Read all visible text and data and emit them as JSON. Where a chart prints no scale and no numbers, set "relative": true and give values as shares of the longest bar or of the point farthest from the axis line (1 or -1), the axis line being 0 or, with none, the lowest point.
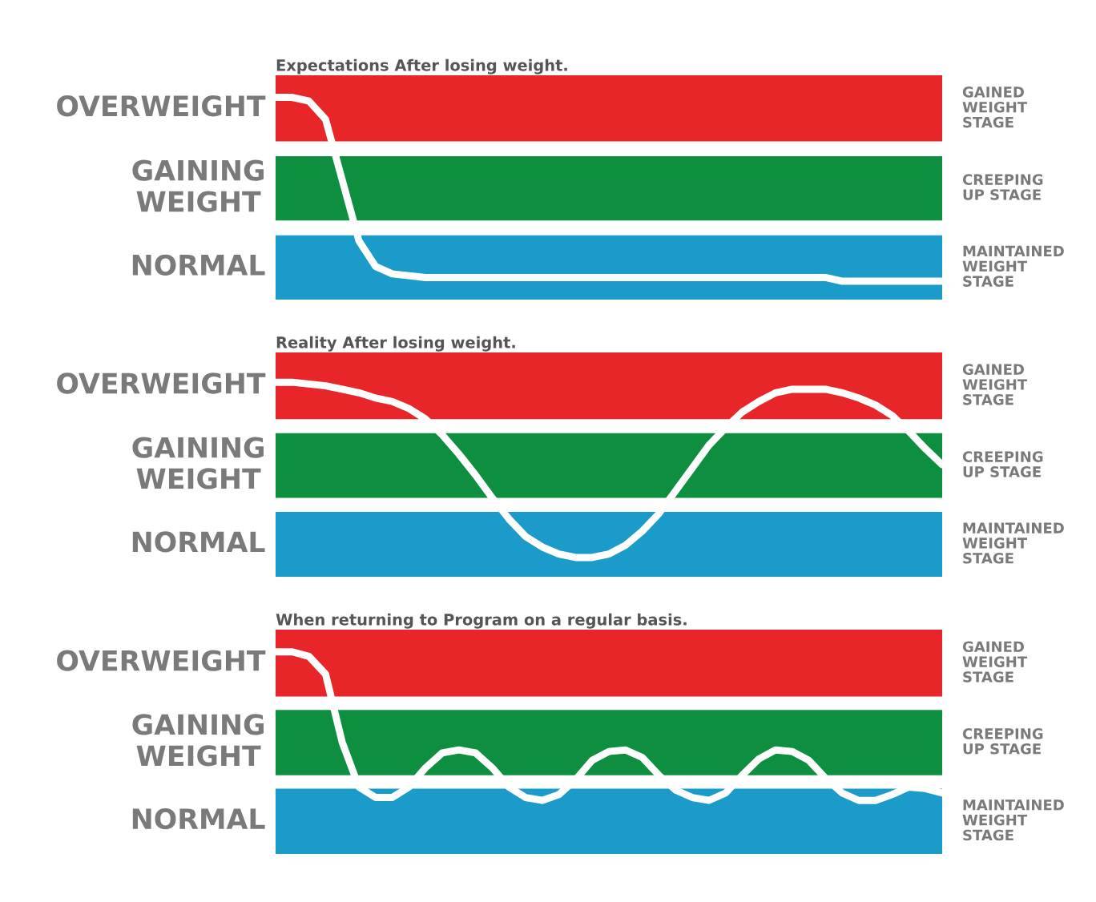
{
  "chart_data": [
    {
      "type": "line",
      "title": "Expectations After losing weight.",
      "relative": true,
      "categories": [
        null,
        null,
        null,
        null,
        null,
        null,
        null,
        null,
        null,
        null,
        null,
        null,
        null,
        null,
        null,
        null,
        null,
        null,
        null,
        null,
        null,
        null,
        null,
        null,
        null,
        null,
        null,
        null,
        null,
        null,
        null,
        null,
        null,
        null,
        null,
        null,
        null,
        null,
        null,
        null,
        null
      ],
      "series": [
        {
          "color": "#ffffff",
          "values": [
            1,
            1,
            0.98,
            0.88,
            0.55,
            0.22,
            0.08,
            0.04,
            0.03,
            0.02,
            0.02,
            0.02,
            0.02,
            0.02,
            0.02,
            0.02,
            0.02,
            0.02,
            0.02,
            0.02,
            0.02,
            0.02,
            0.02,
            0.02,
            0.02,
            0.02,
            0.02,
            0.02,
            0.02,
            0.02,
            0.02,
            0.02,
            0.02,
            0.02,
            0,
            0,
            0,
            0,
            0,
            0,
            0
          ]
        }
      ],
      "annotations": [
        "OVERWEIGHT",
        "GAINING\nWEIGHT",
        "NORMAL"
      ],
      "bands": [
        {
          "axis": "y",
          "from": 0.76,
          "to": 1.12,
          "label": "GAINED\nWEIGHT\nSTAGE",
          "color": "#e8262a"
        },
        {
          "axis": "y",
          "from": 0.33,
          "to": 0.68,
          "label": "CREEPING\nUP STAGE",
          "color": "#0e8f3f"
        },
        {
          "axis": "y",
          "from": -0.1,
          "to": 0.25,
          "label": "MAINTAINED\nWEIGHT\nSTAGE",
          "color": "#1a9bc9"
        }
      ],
      "line_style": "solid"
    },
    {
      "type": "line",
      "title": "Reality After losing weight.",
      "relative": true,
      "categories": [
        null,
        null,
        null,
        null,
        null,
        null,
        null,
        null,
        null,
        null,
        null,
        null,
        null,
        null,
        null,
        null,
        null,
        null,
        null,
        null,
        null,
        null,
        null,
        null,
        null,
        null,
        null,
        null,
        null,
        null,
        null,
        null,
        null,
        null,
        null,
        null,
        null,
        null,
        null,
        null,
        null
      ],
      "series": [
        {
          "color": "#ffffff",
          "values": [
            1,
            1,
            0.99,
            0.98,
            0.96,
            0.94,
            0.91,
            0.89,
            0.85,
            0.79,
            0.7,
            0.59,
            0.47,
            0.34,
            0.22,
            0.12,
            0.06,
            0.02,
            0,
            0,
            0.02,
            0.07,
            0.15,
            0.25,
            0.38,
            0.51,
            0.64,
            0.74,
            0.83,
            0.89,
            0.94,
            0.96,
            0.96,
            0.96,
            0.94,
            0.91,
            0.87,
            0.81,
            0.72,
            0.62,
            0.53
          ]
        }
      ],
      "annotations": [
        "OVERWEIGHT",
        "GAINING\nWEIGHT",
        "NORMAL"
      ],
      "bands": [
        {
          "axis": "y",
          "from": 0.79,
          "to": 1.17,
          "label": "GAINED\nWEIGHT\nSTAGE",
          "color": "#e8262a"
        },
        {
          "axis": "y",
          "from": 0.34,
          "to": 0.71,
          "label": "CREEPING\nUP STAGE",
          "color": "#0e8f3f"
        },
        {
          "axis": "y",
          "from": -0.11,
          "to": 0.26,
          "label": "MAINTAINED\nWEIGHT\nSTAGE",
          "color": "#1a9bc9"
        }
      ],
      "line_style": "solid"
    },
    {
      "type": "line",
      "title": "When returning to Program on a regular basis.",
      "relative": true,
      "categories": [
        null,
        null,
        null,
        null,
        null,
        null,
        null,
        null,
        null,
        null,
        null,
        null,
        null,
        null,
        null,
        null,
        null,
        null,
        null,
        null,
        null,
        null,
        null,
        null,
        null,
        null,
        null,
        null,
        null,
        null,
        null,
        null,
        null,
        null,
        null,
        null,
        null,
        null,
        null,
        null,
        null
      ],
      "series": [
        {
          "color": "#ffffff",
          "values": [
            1,
            1,
            0.97,
            0.85,
            0.39,
            0.09,
            0.02,
            0.02,
            0.09,
            0.22,
            0.32,
            0.34,
            0.32,
            0.22,
            0.09,
            0.02,
            0,
            0.04,
            0.14,
            0.27,
            0.33,
            0.34,
            0.29,
            0.17,
            0.07,
            0.02,
            0,
            0.05,
            0.17,
            0.28,
            0.34,
            0.33,
            0.27,
            0.15,
            0.05,
            0,
            0,
            0.04,
            0.09,
            0.08,
            0.05
          ]
        }
      ],
      "annotations": [
        "OVERWEIGHT",
        "GAINING\nWEIGHT",
        "NORMAL"
      ],
      "bands": [
        {
          "axis": "y",
          "from": 0.7,
          "to": 1.15,
          "label": "GAINED\nWEIGHT\nSTAGE",
          "color": "#e8262a"
        },
        {
          "axis": "y",
          "from": 0.17,
          "to": 0.61,
          "label": "CREEPING\nUP STAGE",
          "color": "#0e8f3f"
        },
        {
          "axis": "y",
          "from": -0.36,
          "to": 0.08,
          "label": "MAINTAINED\nWEIGHT\nSTAGE",
          "color": "#1a9bc9"
        }
      ],
      "line_style": "solid"
    }
  ]
}
